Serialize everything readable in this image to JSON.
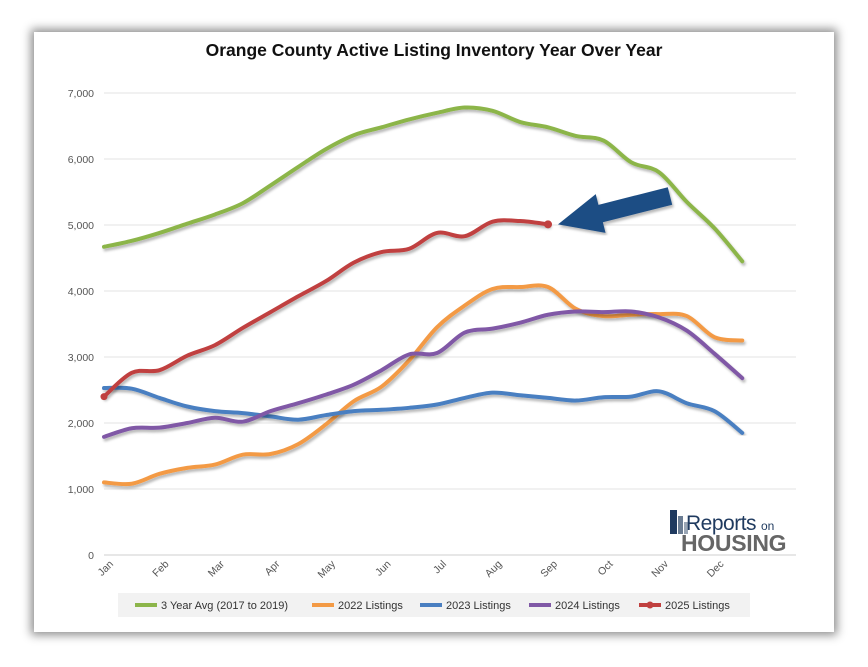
{
  "chart_data": {
    "type": "line",
    "title": "Orange County Active Listing Inventory Year Over Year",
    "xlabel": "",
    "ylabel": "",
    "ylim": [
      0,
      7000
    ],
    "y_ticks": [
      "0",
      "1,000",
      "2,000",
      "3,000",
      "4,000",
      "5,000",
      "6,000",
      "7,000"
    ],
    "categories": [
      "Jan",
      "Feb",
      "Mar",
      "Apr",
      "May",
      "Jun",
      "Jul",
      "Aug",
      "Sep",
      "Oct",
      "Nov",
      "Dec"
    ],
    "grid": "horizontal",
    "legend_position": "bottom",
    "series": [
      {
        "name": "3 Year Avg (2017 to 2019)",
        "color": "#8cb54a",
        "markers": false,
        "x": [
          0,
          0.5,
          1,
          1.5,
          2,
          2.5,
          3,
          3.5,
          4,
          4.5,
          5,
          5.5,
          6,
          6.5,
          7,
          7.5,
          8,
          8.5,
          9,
          9.5,
          10,
          10.5,
          11,
          11.5
        ],
        "values": [
          4670,
          4760,
          4880,
          5020,
          5160,
          5330,
          5600,
          5880,
          6150,
          6360,
          6480,
          6600,
          6700,
          6780,
          6730,
          6560,
          6480,
          6350,
          6280,
          5950,
          5800,
          5350,
          4950,
          4450
        ]
      },
      {
        "name": "2022 Listings",
        "color": "#f39a45",
        "markers": false,
        "x": [
          0,
          0.5,
          1,
          1.5,
          2,
          2.5,
          3,
          3.5,
          4,
          4.5,
          5,
          5.5,
          6,
          6.5,
          7,
          7.5,
          8,
          8.5,
          9,
          9.5,
          10,
          10.5,
          11,
          11.5
        ],
        "values": [
          1100,
          1080,
          1230,
          1320,
          1370,
          1520,
          1530,
          1680,
          1980,
          2330,
          2550,
          2950,
          3450,
          3780,
          4030,
          4060,
          4060,
          3730,
          3620,
          3640,
          3650,
          3620,
          3300,
          3250
        ]
      },
      {
        "name": "2023 Listings",
        "color": "#4a7fc1",
        "markers": false,
        "x": [
          0,
          0.5,
          1,
          1.5,
          2,
          2.5,
          3,
          3.5,
          4,
          4.5,
          5,
          5.5,
          6,
          6.5,
          7,
          7.5,
          8,
          8.5,
          9,
          9.5,
          10,
          10.5,
          11,
          11.5
        ],
        "values": [
          2530,
          2520,
          2380,
          2250,
          2180,
          2150,
          2100,
          2050,
          2120,
          2180,
          2200,
          2230,
          2280,
          2380,
          2460,
          2420,
          2380,
          2340,
          2390,
          2400,
          2480,
          2300,
          2180,
          1850
        ]
      },
      {
        "name": "2024 Listings",
        "color": "#8059a6",
        "markers": false,
        "x": [
          0,
          0.5,
          1,
          1.5,
          2,
          2.5,
          3,
          3.5,
          4,
          4.5,
          5,
          5.5,
          6,
          6.5,
          7,
          7.5,
          8,
          8.5,
          9,
          9.5,
          10,
          10.5,
          11,
          11.5
        ],
        "values": [
          1790,
          1920,
          1930,
          2000,
          2080,
          2020,
          2180,
          2300,
          2430,
          2580,
          2800,
          3040,
          3060,
          3370,
          3430,
          3520,
          3640,
          3690,
          3680,
          3690,
          3600,
          3400,
          3050,
          2680
        ]
      },
      {
        "name": "2025 Listings",
        "color": "#c0403f",
        "markers": true,
        "x": [
          0,
          0.5,
          1,
          1.5,
          2,
          2.5,
          3,
          3.5,
          4,
          4.5,
          5,
          5.5,
          6,
          6.5,
          7,
          7.5,
          8
        ],
        "values": [
          2400,
          2760,
          2800,
          3020,
          3180,
          3440,
          3680,
          3920,
          4150,
          4430,
          4590,
          4640,
          4880,
          4830,
          5050,
          5060,
          5010
        ]
      }
    ]
  },
  "logo": {
    "top": "Reports",
    "on": "on",
    "bottom": "HOUSING"
  },
  "annotation": {
    "type": "arrow",
    "color": "#1f4e84",
    "points_to_series": "2025 Listings",
    "points_to_x": 8
  }
}
